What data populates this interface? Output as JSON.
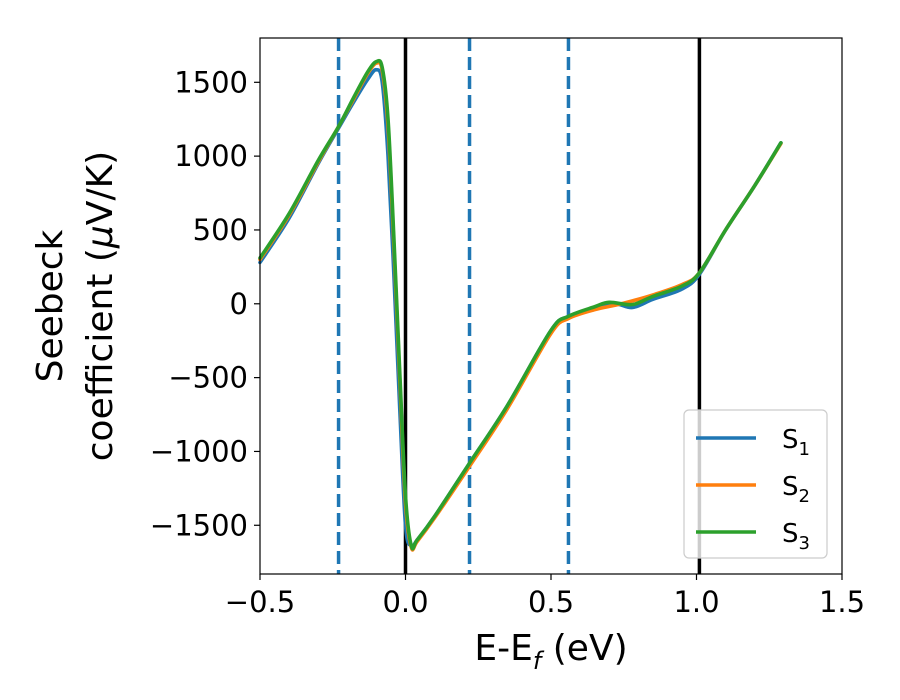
{
  "chart_data": {
    "type": "line",
    "xlabel": "E-E",
    "xlabel_sub": "f",
    "xlabel_unit": " (eV)",
    "ylabel_line1": "Seebeck",
    "ylabel_line2": "coefficient  (",
    "ylabel_mu": "μ",
    "ylabel_unit": "V/K)",
    "xlim": [
      -0.5,
      1.5
    ],
    "ylim": [
      -1830,
      1800
    ],
    "xticks": [
      -0.5,
      0.0,
      0.5,
      1.0,
      1.5
    ],
    "xtick_labels": [
      "−0.5",
      "0.0",
      "0.5",
      "1.0",
      "1.5"
    ],
    "yticks": [
      -1500,
      -1000,
      -500,
      0,
      500,
      1000,
      1500
    ],
    "ytick_labels": [
      "−1500",
      "−1000",
      "−500",
      "0",
      "500",
      "1000",
      "1500"
    ],
    "grid": false,
    "legend_position": "bottom-right",
    "vlines_solid": [
      0.0,
      1.01
    ],
    "vlines_dashed": [
      -0.23,
      0.22,
      0.56
    ],
    "vline_solid_color": "#000000",
    "vline_dashed_color": "#1f77b4",
    "series": [
      {
        "name": "S",
        "sub": "1",
        "color": "#1f77b4",
        "x": [
          -0.5,
          -0.4,
          -0.3,
          -0.23,
          -0.18,
          -0.13,
          -0.1,
          -0.08,
          -0.06,
          -0.04,
          -0.02,
          0.0,
          0.02,
          0.04,
          0.1,
          0.22,
          0.35,
          0.5,
          0.56,
          0.65,
          0.72,
          0.78,
          0.85,
          0.95,
          1.01,
          1.1,
          1.2,
          1.29
        ],
        "y": [
          280,
          580,
          950,
          1190,
          1360,
          1520,
          1585,
          1500,
          1000,
          200,
          -700,
          -1500,
          -1640,
          -1600,
          -1440,
          -1080,
          -690,
          -180,
          -85,
          -30,
          0,
          -25,
          30,
          100,
          200,
          500,
          800,
          1090
        ]
      },
      {
        "name": "S",
        "sub": "2",
        "color": "#ff7f0e",
        "x": [
          -0.5,
          -0.4,
          -0.3,
          -0.23,
          -0.18,
          -0.13,
          -0.1,
          -0.08,
          -0.06,
          -0.04,
          -0.02,
          0.0,
          0.02,
          0.04,
          0.1,
          0.22,
          0.35,
          0.5,
          0.56,
          0.65,
          0.72,
          0.78,
          0.85,
          0.95,
          1.01,
          1.1,
          1.2,
          1.29
        ],
        "y": [
          300,
          600,
          960,
          1200,
          1380,
          1560,
          1630,
          1580,
          1200,
          400,
          -500,
          -1350,
          -1650,
          -1610,
          -1450,
          -1100,
          -710,
          -200,
          -100,
          -40,
          -10,
          20,
          60,
          130,
          210,
          500,
          800,
          1085
        ]
      },
      {
        "name": "S",
        "sub": "3",
        "color": "#2ca02c",
        "x": [
          -0.5,
          -0.4,
          -0.3,
          -0.23,
          -0.18,
          -0.13,
          -0.1,
          -0.08,
          -0.06,
          -0.04,
          -0.02,
          0.0,
          0.02,
          0.04,
          0.1,
          0.22,
          0.35,
          0.5,
          0.56,
          0.65,
          0.7,
          0.78,
          0.85,
          0.95,
          1.01,
          1.1,
          1.2,
          1.29
        ],
        "y": [
          310,
          610,
          970,
          1200,
          1390,
          1570,
          1640,
          1600,
          1250,
          450,
          -450,
          -1300,
          -1640,
          -1600,
          -1440,
          -1080,
          -690,
          -180,
          -85,
          -20,
          10,
          -5,
          50,
          120,
          210,
          500,
          800,
          1090
        ]
      }
    ]
  }
}
